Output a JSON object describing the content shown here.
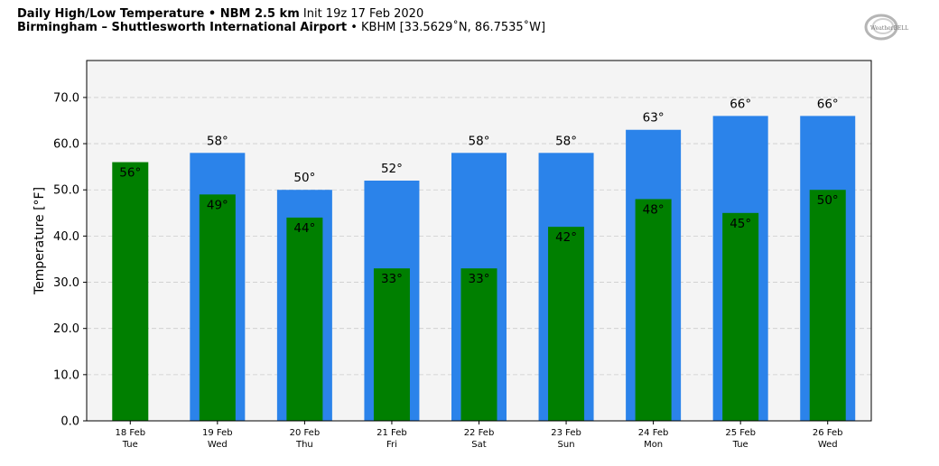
{
  "header": {
    "title": "Daily High/Low Temperature • NBM 2.5 km",
    "init": "Init 19z 17 Feb 2020",
    "location": "Birmingham – Shuttlesworth International Airport",
    "station": "• KBHM [33.5629˚N, 86.7535˚W]"
  },
  "logo": {
    "text": "WeatherBELL",
    "icon": "weatherbell-logo"
  },
  "chart_data": {
    "type": "bar",
    "title": "Daily High/Low Temperature • NBM 2.5 km",
    "xlabel": "",
    "ylabel": "Temperature [°F]",
    "ylim": [
      0,
      78
    ],
    "yticks": [
      "0.0",
      "10.0",
      "20.0",
      "30.0",
      "40.0",
      "50.0",
      "60.0",
      "70.0"
    ],
    "grid": true,
    "categories": [
      {
        "date": "18 Feb",
        "day": "Tue"
      },
      {
        "date": "19 Feb",
        "day": "Wed"
      },
      {
        "date": "20 Feb",
        "day": "Thu"
      },
      {
        "date": "21 Feb",
        "day": "Fri"
      },
      {
        "date": "22 Feb",
        "day": "Sat"
      },
      {
        "date": "23 Feb",
        "day": "Sun"
      },
      {
        "date": "24 Feb",
        "day": "Mon"
      },
      {
        "date": "25 Feb",
        "day": "Tue"
      },
      {
        "date": "26 Feb",
        "day": "Wed"
      }
    ],
    "series": [
      {
        "color": "#2b83ea",
        "values": [
          null,
          58,
          50,
          52,
          58,
          58,
          63,
          66,
          66
        ],
        "labels": [
          "",
          "58°",
          "50°",
          "52°",
          "58°",
          "58°",
          "63°",
          "66°",
          "66°"
        ]
      },
      {
        "color": "#007f00",
        "values": [
          56,
          49,
          44,
          33,
          33,
          42,
          48,
          45,
          50
        ],
        "labels": [
          "56°",
          "49°",
          "44°",
          "33°",
          "33°",
          "42°",
          "48°",
          "45°",
          "50°"
        ]
      }
    ],
    "colors": {
      "plot_bg": "#f4f4f4",
      "grid": "#cccccc"
    }
  }
}
